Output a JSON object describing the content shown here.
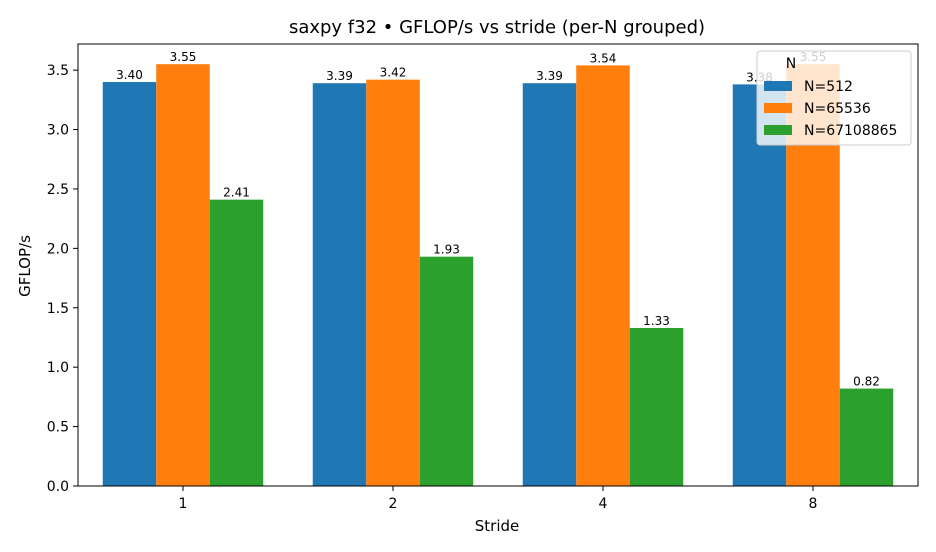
{
  "chart_data": {
    "type": "bar",
    "title": "saxpy f32 • GFLOP/s vs stride (per-N grouped)",
    "xlabel": "Stride",
    "ylabel": "GFLOP/s",
    "categories": [
      "1",
      "2",
      "4",
      "8"
    ],
    "ylim": [
      0,
      3.72
    ],
    "yticks": [
      "0.0",
      "0.5",
      "1.0",
      "1.5",
      "2.0",
      "2.5",
      "3.0",
      "3.5"
    ],
    "grid": false,
    "legend": {
      "title": "N",
      "position": "top-right"
    },
    "series": [
      {
        "name": "N=512",
        "color": "#1f77b4",
        "values": [
          3.4,
          3.39,
          3.39,
          3.38
        ],
        "labels": [
          "3.40",
          "3.39",
          "3.39",
          "3.38"
        ]
      },
      {
        "name": "N=65536",
        "color": "#ff7f0e",
        "values": [
          3.55,
          3.42,
          3.54,
          3.55
        ],
        "labels": [
          "3.55",
          "3.42",
          "3.54",
          "3.55"
        ]
      },
      {
        "name": "N=67108865",
        "color": "#2ca02c",
        "values": [
          2.41,
          1.93,
          1.33,
          0.82
        ],
        "labels": [
          "2.41",
          "1.93",
          "1.33",
          "0.82"
        ]
      }
    ]
  }
}
